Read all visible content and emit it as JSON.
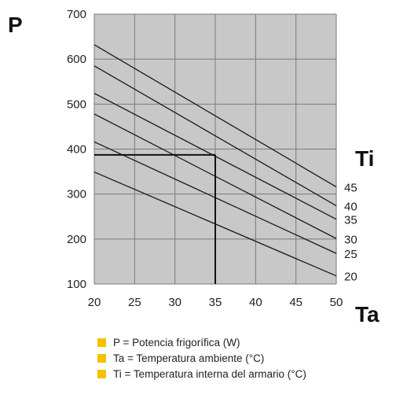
{
  "axis_letters": {
    "y": "P",
    "x": "Ta",
    "series_group": "Ti"
  },
  "legend": [
    "P = Potencia frigorífica (W)",
    "Ta = Temperatura ambiente (°C)",
    "Ti = Temperatura interna del armario (°C)"
  ],
  "colors": {
    "plot_bg": "#c8c8c8",
    "grid": "#7a7a7a",
    "lines": "#1a1a1a",
    "legend_marker": "#f5c000"
  },
  "chart_data": {
    "type": "line",
    "xlim": [
      20,
      50
    ],
    "ylim": [
      100,
      700
    ],
    "x_ticks": [
      "20",
      "25",
      "30",
      "35",
      "40",
      "45",
      "50"
    ],
    "y_ticks": [
      "100",
      "200",
      "300",
      "400",
      "500",
      "600",
      "700"
    ],
    "grid": true,
    "series": [
      {
        "name": "45",
        "x": [
          20,
          50
        ],
        "y": [
          632,
          316
        ]
      },
      {
        "name": "40",
        "x": [
          20,
          50
        ],
        "y": [
          585,
          274
        ]
      },
      {
        "name": "35",
        "x": [
          20,
          50
        ],
        "y": [
          524,
          244
        ]
      },
      {
        "name": "30",
        "x": [
          20,
          50
        ],
        "y": [
          478,
          201
        ]
      },
      {
        "name": "25",
        "x": [
          20,
          50
        ],
        "y": [
          416,
          168
        ]
      },
      {
        "name": "20",
        "x": [
          20,
          50
        ],
        "y": [
          349,
          118
        ]
      }
    ],
    "reference": {
      "x": 35,
      "y": 387
    }
  }
}
